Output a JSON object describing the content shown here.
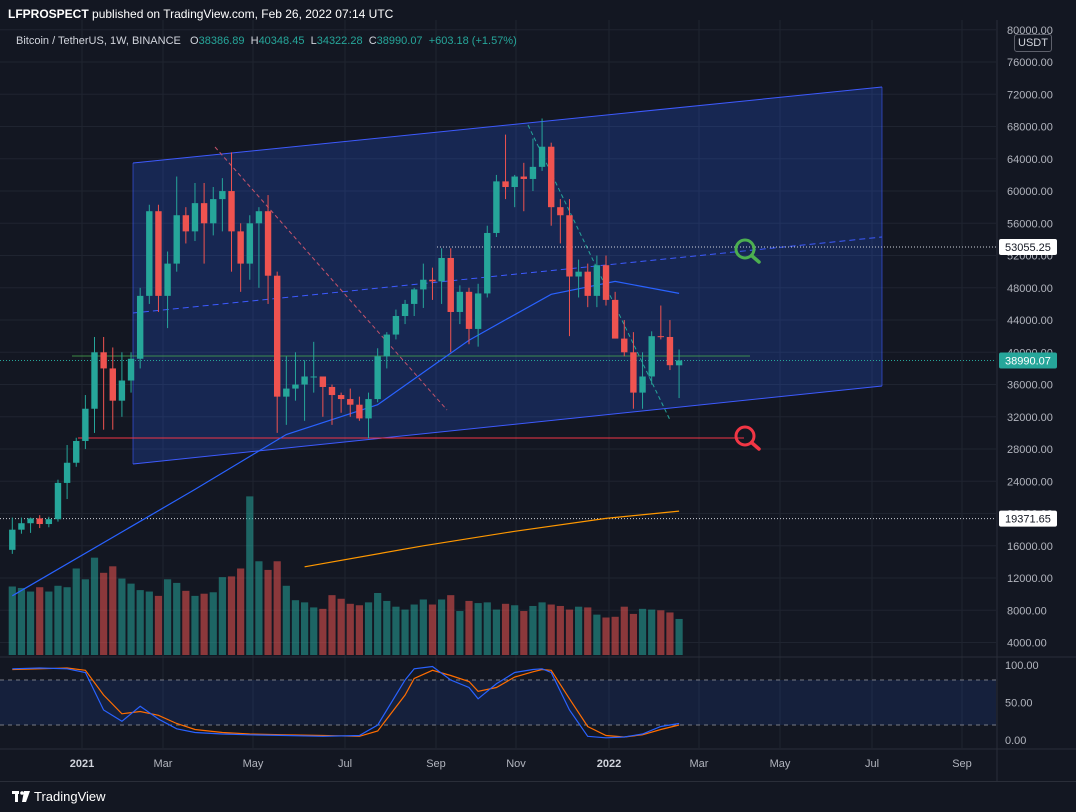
{
  "header": {
    "publisher": "LFPROSPECT",
    "text": "published on TradingView.com, Feb 26, 2022 07:14 UTC"
  },
  "legend": {
    "symbol": "Bitcoin / TetherUS, 1W, BINANCE",
    "o_label": "O",
    "o_value": "38386.89",
    "h_label": "H",
    "h_value": "40348.45",
    "l_label": "L",
    "l_value": "34322.28",
    "c_label": "C",
    "c_value": "38990.07",
    "change": "+603.18 (+1.57%)"
  },
  "currency_button": "USDT",
  "footer": {
    "brand": "TradingView"
  },
  "colors": {
    "background": "#131722",
    "up": "#26a69a",
    "down": "#ef5350",
    "channel": "#3d5afe",
    "ma_blue": "#2962ff",
    "ma_orange": "#ff9800",
    "green_zoom": "#4caf50",
    "red_zoom": "#f23645"
  },
  "icons": [
    "green-zoom-icon",
    "red-zoom-icon",
    "tradingview-logo-icon"
  ],
  "chart_data": [
    {
      "type": "candlestick",
      "title": "Bitcoin / TetherUS, 1W, BINANCE",
      "price_axis_labels": [
        "80000.00",
        "76000.00",
        "72000.00",
        "68000.00",
        "64000.00",
        "60000.00",
        "56000.00",
        "52000.00",
        "48000.00",
        "44000.00",
        "40000.00",
        "36000.00",
        "32000.00",
        "28000.00",
        "24000.00",
        "20000.00",
        "16000.00",
        "12000.00",
        "8000.00",
        "4000.00"
      ],
      "time_axis_labels": [
        "2021",
        "Mar",
        "May",
        "Jul",
        "Sep",
        "Nov",
        "2022",
        "Mar",
        "May",
        "Jul",
        "Sep"
      ],
      "price_tags": [
        {
          "label": "53055.25",
          "value": 53055.25
        },
        {
          "label": "38990.07",
          "value": 38990.07
        },
        {
          "label": "19371.65",
          "value": 19371.65
        }
      ],
      "candles": [
        {
          "o": 15500,
          "h": 19500,
          "l": 15000,
          "c": 18000
        },
        {
          "o": 18000,
          "h": 19500,
          "l": 17500,
          "c": 18800
        },
        {
          "o": 18800,
          "h": 19500,
          "l": 17600,
          "c": 19400
        },
        {
          "o": 19400,
          "h": 19800,
          "l": 18200,
          "c": 18700
        },
        {
          "o": 18700,
          "h": 19600,
          "l": 18300,
          "c": 19300
        },
        {
          "o": 19300,
          "h": 24200,
          "l": 19000,
          "c": 23800
        },
        {
          "o": 23800,
          "h": 28500,
          "l": 21800,
          "c": 26300
        },
        {
          "o": 26300,
          "h": 29400,
          "l": 25800,
          "c": 29000
        },
        {
          "o": 29000,
          "h": 34700,
          "l": 28000,
          "c": 33000
        },
        {
          "o": 33000,
          "h": 41900,
          "l": 30000,
          "c": 40000
        },
        {
          "o": 40000,
          "h": 41900,
          "l": 30400,
          "c": 38000
        },
        {
          "o": 38000,
          "h": 40600,
          "l": 30400,
          "c": 34000
        },
        {
          "o": 34000,
          "h": 40000,
          "l": 32000,
          "c": 36500
        },
        {
          "o": 36500,
          "h": 40000,
          "l": 35000,
          "c": 39200
        },
        {
          "o": 39200,
          "h": 48000,
          "l": 38000,
          "c": 47000
        },
        {
          "o": 47000,
          "h": 58300,
          "l": 46000,
          "c": 57500
        },
        {
          "o": 57500,
          "h": 58300,
          "l": 45000,
          "c": 47000
        },
        {
          "o": 47000,
          "h": 52500,
          "l": 43000,
          "c": 51000
        },
        {
          "o": 51000,
          "h": 61800,
          "l": 50000,
          "c": 57000
        },
        {
          "o": 57000,
          "h": 58000,
          "l": 53500,
          "c": 55000
        },
        {
          "o": 55000,
          "h": 61000,
          "l": 53800,
          "c": 58500
        },
        {
          "o": 58500,
          "h": 61000,
          "l": 51000,
          "c": 56000
        },
        {
          "o": 56000,
          "h": 60500,
          "l": 54500,
          "c": 59000
        },
        {
          "o": 59000,
          "h": 61600,
          "l": 55000,
          "c": 60000
        },
        {
          "o": 60000,
          "h": 64800,
          "l": 50000,
          "c": 55000
        },
        {
          "o": 55000,
          "h": 56000,
          "l": 47500,
          "c": 51000
        },
        {
          "o": 51000,
          "h": 57000,
          "l": 49000,
          "c": 56000
        },
        {
          "o": 56000,
          "h": 58000,
          "l": 48000,
          "c": 57500
        },
        {
          "o": 57500,
          "h": 59500,
          "l": 46000,
          "c": 49500
        },
        {
          "o": 49500,
          "h": 50000,
          "l": 30000,
          "c": 34500
        },
        {
          "o": 34500,
          "h": 39500,
          "l": 31000,
          "c": 35500
        },
        {
          "o": 35500,
          "h": 40000,
          "l": 34000,
          "c": 36000
        },
        {
          "o": 36000,
          "h": 39000,
          "l": 31500,
          "c": 37000
        },
        {
          "o": 37000,
          "h": 41300,
          "l": 35000,
          "c": 37000
        },
        {
          "o": 37000,
          "h": 37000,
          "l": 32000,
          "c": 35700
        },
        {
          "o": 35700,
          "h": 36000,
          "l": 31000,
          "c": 34700
        },
        {
          "o": 34700,
          "h": 35000,
          "l": 32500,
          "c": 34200
        },
        {
          "o": 34200,
          "h": 35500,
          "l": 32000,
          "c": 33500
        },
        {
          "o": 33500,
          "h": 34500,
          "l": 31500,
          "c": 31800
        },
        {
          "o": 31800,
          "h": 35000,
          "l": 29300,
          "c": 34200
        },
        {
          "o": 34200,
          "h": 40500,
          "l": 33800,
          "c": 39500
        },
        {
          "o": 39500,
          "h": 42500,
          "l": 38000,
          "c": 42200
        },
        {
          "o": 42200,
          "h": 45300,
          "l": 41600,
          "c": 44500
        },
        {
          "o": 44500,
          "h": 46500,
          "l": 43500,
          "c": 46000
        },
        {
          "o": 46000,
          "h": 48000,
          "l": 44500,
          "c": 47800
        },
        {
          "o": 47800,
          "h": 51000,
          "l": 45500,
          "c": 49000
        },
        {
          "o": 49000,
          "h": 50500,
          "l": 46500,
          "c": 48800
        },
        {
          "o": 48800,
          "h": 52900,
          "l": 46000,
          "c": 51700
        },
        {
          "o": 51700,
          "h": 52900,
          "l": 40000,
          "c": 45000
        },
        {
          "o": 45000,
          "h": 48300,
          "l": 43500,
          "c": 47500
        },
        {
          "o": 47500,
          "h": 48000,
          "l": 41000,
          "c": 42900
        },
        {
          "o": 42900,
          "h": 48500,
          "l": 40700,
          "c": 47300
        },
        {
          "o": 47300,
          "h": 55700,
          "l": 46800,
          "c": 54800
        },
        {
          "o": 54800,
          "h": 62000,
          "l": 54300,
          "c": 61200
        },
        {
          "o": 61200,
          "h": 67000,
          "l": 59000,
          "c": 60500
        },
        {
          "o": 60500,
          "h": 62000,
          "l": 58000,
          "c": 61800
        },
        {
          "o": 61800,
          "h": 63500,
          "l": 57500,
          "c": 61500
        },
        {
          "o": 61500,
          "h": 66500,
          "l": 60000,
          "c": 63000
        },
        {
          "o": 63000,
          "h": 69000,
          "l": 62500,
          "c": 65500
        },
        {
          "o": 65500,
          "h": 66000,
          "l": 55700,
          "c": 58000
        },
        {
          "o": 58000,
          "h": 59000,
          "l": 53500,
          "c": 57000
        },
        {
          "o": 57000,
          "h": 59000,
          "l": 42000,
          "c": 49400
        },
        {
          "o": 49400,
          "h": 51500,
          "l": 46800,
          "c": 50000
        },
        {
          "o": 50000,
          "h": 51000,
          "l": 45600,
          "c": 47000
        },
        {
          "o": 47000,
          "h": 52000,
          "l": 45600,
          "c": 50800
        },
        {
          "o": 50800,
          "h": 52000,
          "l": 45800,
          "c": 46500
        },
        {
          "o": 46500,
          "h": 47500,
          "l": 42000,
          "c": 41700
        },
        {
          "o": 41700,
          "h": 44000,
          "l": 39500,
          "c": 40000
        },
        {
          "o": 40000,
          "h": 42500,
          "l": 33000,
          "c": 35000
        },
        {
          "o": 35000,
          "h": 40000,
          "l": 33000,
          "c": 37000
        },
        {
          "o": 37000,
          "h": 42600,
          "l": 36000,
          "c": 42000
        },
        {
          "o": 42000,
          "h": 45800,
          "l": 41600,
          "c": 41900
        },
        {
          "o": 41900,
          "h": 44000,
          "l": 37800,
          "c": 38400
        },
        {
          "o": 38386.89,
          "h": 40348.45,
          "l": 34322.28,
          "c": 38990.07
        }
      ],
      "volumes": [
        9500,
        9300,
        8800,
        9400,
        8800,
        9600,
        9400,
        12000,
        10500,
        13500,
        11400,
        12300,
        10600,
        9900,
        9000,
        8800,
        8200,
        10500,
        10000,
        8900,
        8200,
        8500,
        8700,
        10800,
        10900,
        12000,
        22000,
        13000,
        11800,
        13000,
        9600,
        7600,
        7300,
        6600,
        6400,
        8300,
        7800,
        7100,
        6900,
        7300,
        8600,
        7500,
        6700,
        6300,
        7000,
        7700,
        7000,
        7700,
        8300,
        6100,
        7500,
        7200,
        7300,
        6300,
        7100,
        6900,
        6100,
        6800,
        7300,
        7000,
        6800,
        6300,
        6700,
        6600,
        5600,
        5200,
        5300,
        6700,
        5700,
        6400,
        6300,
        6200,
        5900,
        5000
      ],
      "moving_averages": [
        {
          "color": "#2962ff",
          "values": [
            [
              0,
              9800
            ],
            [
              20,
              23000
            ],
            [
              30,
              29800
            ],
            [
              40,
              33500
            ],
            [
              50,
              41500
            ],
            [
              59,
              47200
            ],
            [
              66,
              48800
            ],
            [
              73,
              47300
            ]
          ]
        },
        {
          "color": "#ff9800",
          "values": [
            [
              32,
              13400
            ],
            [
              45,
              16000
            ],
            [
              55,
              17800
            ],
            [
              65,
              19400
            ],
            [
              73,
              20300
            ]
          ]
        }
      ],
      "stochastic": {
        "axis_labels": [
          "100.00",
          "50.00",
          "0.00"
        ],
        "bands": [
          80,
          20
        ],
        "k_line": [
          [
            0,
            95
          ],
          [
            3,
            96
          ],
          [
            6,
            95
          ],
          [
            8,
            90
          ],
          [
            10,
            40
          ],
          [
            12,
            25
          ],
          [
            14,
            45
          ],
          [
            16,
            28
          ],
          [
            18,
            15
          ],
          [
            20,
            10
          ],
          [
            23,
            8
          ],
          [
            26,
            7
          ],
          [
            30,
            6
          ],
          [
            34,
            5
          ],
          [
            38,
            6
          ],
          [
            40,
            20
          ],
          [
            43,
            80
          ],
          [
            44,
            95
          ],
          [
            46,
            98
          ],
          [
            48,
            80
          ],
          [
            50,
            70
          ],
          [
            51,
            55
          ],
          [
            53,
            75
          ],
          [
            55,
            90
          ],
          [
            57,
            94
          ],
          [
            58,
            95
          ],
          [
            59,
            90
          ],
          [
            61,
            40
          ],
          [
            63,
            5
          ],
          [
            65,
            3
          ],
          [
            67,
            4
          ],
          [
            69,
            8
          ],
          [
            71,
            18
          ],
          [
            73,
            22
          ]
        ],
        "d_line": [
          [
            0,
            94
          ],
          [
            3,
            95
          ],
          [
            6,
            96
          ],
          [
            8,
            93
          ],
          [
            10,
            60
          ],
          [
            12,
            35
          ],
          [
            14,
            38
          ],
          [
            16,
            33
          ],
          [
            18,
            22
          ],
          [
            20,
            14
          ],
          [
            23,
            10
          ],
          [
            26,
            8
          ],
          [
            30,
            7
          ],
          [
            34,
            6
          ],
          [
            38,
            5
          ],
          [
            40,
            12
          ],
          [
            43,
            60
          ],
          [
            44,
            82
          ],
          [
            46,
            93
          ],
          [
            48,
            86
          ],
          [
            50,
            78
          ],
          [
            51,
            65
          ],
          [
            53,
            70
          ],
          [
            55,
            84
          ],
          [
            57,
            91
          ],
          [
            58,
            94
          ],
          [
            59,
            93
          ],
          [
            61,
            55
          ],
          [
            63,
            18
          ],
          [
            65,
            6
          ],
          [
            67,
            4
          ],
          [
            69,
            7
          ],
          [
            71,
            14
          ],
          [
            73,
            20
          ]
        ]
      }
    }
  ]
}
